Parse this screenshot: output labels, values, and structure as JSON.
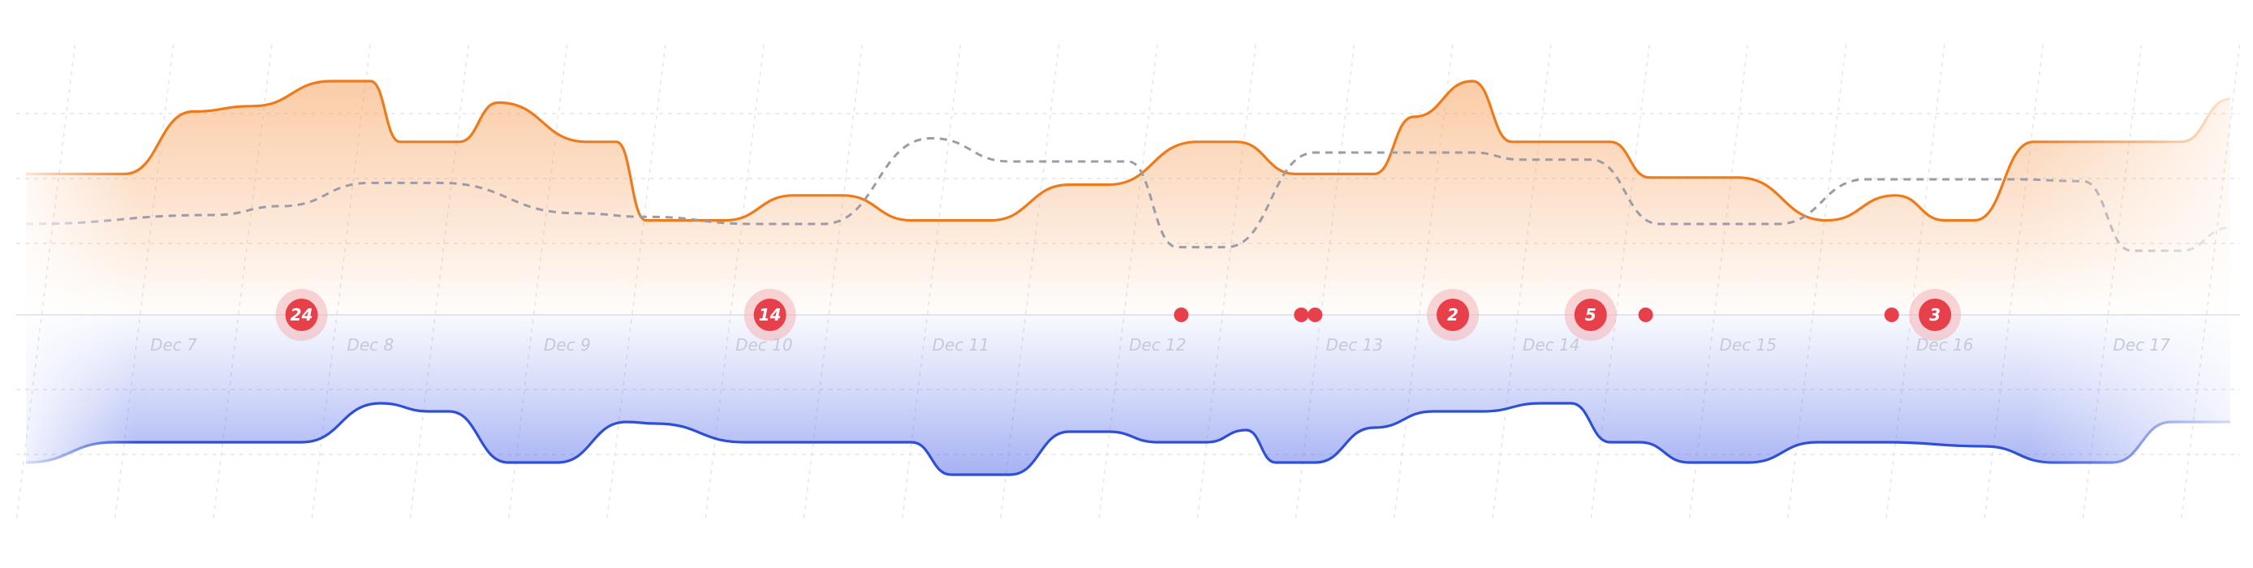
{
  "chart_data": {
    "type": "area",
    "x_tick_labels": [
      "Dec 7",
      "Dec 8",
      "Dec 9",
      "Dec 10",
      "Dec 11",
      "Dec 12",
      "Dec 13",
      "Dec 14",
      "Dec 15",
      "Dec 16",
      "Dec 17"
    ],
    "x_tick_positions": [
      0.15,
      1.15,
      2.15,
      3.15,
      4.15,
      5.15,
      6.15,
      7.15,
      8.15,
      9.15,
      10.15
    ],
    "xlim": [
      -0.65,
      10.65
    ],
    "ylim_upper": [
      0,
      1
    ],
    "ylim_lower": [
      0,
      1
    ],
    "grid": true,
    "legend": "none",
    "series": [
      {
        "id": "upper-area",
        "style": "orange area",
        "x": [
          -0.6,
          -0.1,
          0.25,
          0.55,
          0.95,
          1.15,
          1.3,
          1.6,
          1.8,
          2.25,
          2.4,
          2.55,
          2.75,
          2.95,
          3.3,
          3.55,
          3.9,
          4.3,
          4.7,
          4.9,
          5.35,
          5.55,
          5.85,
          6.25,
          6.45,
          6.75,
          6.95,
          7.25,
          7.45,
          7.65,
          8.1,
          8.55,
          8.9,
          9.15,
          9.3,
          9.6,
          10.0,
          10.35,
          10.6
        ],
        "y": [
          0.48,
          0.48,
          0.83,
          0.86,
          1.0,
          1.0,
          0.66,
          0.66,
          0.88,
          0.66,
          0.66,
          0.22,
          0.22,
          0.22,
          0.36,
          0.36,
          0.22,
          0.22,
          0.42,
          0.42,
          0.66,
          0.66,
          0.48,
          0.48,
          0.8,
          1.0,
          0.66,
          0.66,
          0.66,
          0.46,
          0.46,
          0.22,
          0.36,
          0.22,
          0.22,
          0.66,
          0.66,
          0.66,
          0.9
        ]
      },
      {
        "id": "upper-dashed",
        "style": "gray dashed line",
        "x": [
          -0.6,
          0.35,
          0.7,
          1.15,
          1.5,
          2.2,
          2.55,
          3.1,
          3.45,
          4.0,
          4.4,
          4.75,
          5.0,
          5.25,
          5.5,
          5.95,
          6.35,
          6.75,
          7.0,
          7.35,
          7.7,
          7.95,
          8.3,
          8.75,
          9.5,
          9.85,
          10.1,
          10.35,
          10.6
        ],
        "y": [
          0.2,
          0.25,
          0.3,
          0.43,
          0.43,
          0.26,
          0.24,
          0.2,
          0.2,
          0.68,
          0.55,
          0.55,
          0.55,
          0.07,
          0.07,
          0.6,
          0.6,
          0.6,
          0.56,
          0.56,
          0.2,
          0.2,
          0.2,
          0.45,
          0.45,
          0.44,
          0.05,
          0.05,
          0.18
        ]
      },
      {
        "id": "lower-area",
        "style": "blue area",
        "x": [
          -0.6,
          -0.15,
          0.35,
          0.8,
          1.2,
          1.45,
          1.55,
          1.85,
          2.1,
          2.45,
          2.6,
          3.05,
          3.3,
          3.55,
          3.9,
          4.1,
          4.4,
          4.7,
          4.9,
          5.15,
          5.4,
          5.6,
          5.75,
          5.95,
          6.25,
          6.55,
          6.8,
          7.1,
          7.25,
          7.45,
          7.6,
          7.85,
          8.15,
          8.5,
          8.85,
          9.35,
          9.7,
          10.0,
          10.3,
          10.6
        ],
        "y": [
          0.0,
          0.25,
          0.25,
          0.25,
          0.73,
          0.63,
          0.63,
          0.0,
          0.0,
          0.5,
          0.48,
          0.25,
          0.25,
          0.25,
          0.25,
          -0.15,
          -0.15,
          0.38,
          0.38,
          0.25,
          0.25,
          0.4,
          0.0,
          0.0,
          0.43,
          0.63,
          0.63,
          0.73,
          0.73,
          0.25,
          0.25,
          0.0,
          0.0,
          0.25,
          0.25,
          0.2,
          0.0,
          0.0,
          0.5,
          0.5
        ]
      }
    ],
    "incidents": [
      {
        "x": 0.8,
        "count": "24"
      },
      {
        "x": 3.18,
        "count": "14"
      },
      {
        "x": 5.27,
        "count": ""
      },
      {
        "x": 5.88,
        "count": ""
      },
      {
        "x": 5.95,
        "count": ""
      },
      {
        "x": 6.65,
        "count": "2"
      },
      {
        "x": 7.35,
        "count": "5"
      },
      {
        "x": 7.63,
        "count": ""
      },
      {
        "x": 8.88,
        "count": ""
      },
      {
        "x": 9.1,
        "count": "3"
      }
    ],
    "colors": {
      "upper_line": "#ef7a1a",
      "upper_fill": "#f7a25f",
      "dashed_line": "#9a9ca8",
      "lower_line": "#2f4fd6",
      "lower_fill": "#5c72ea",
      "incident": "#e8404a",
      "incident_halo": "#f3b2b6",
      "grid": "#e4e6ea",
      "baseline": "#dde0e6",
      "tick_label": "#c5cad6"
    }
  }
}
